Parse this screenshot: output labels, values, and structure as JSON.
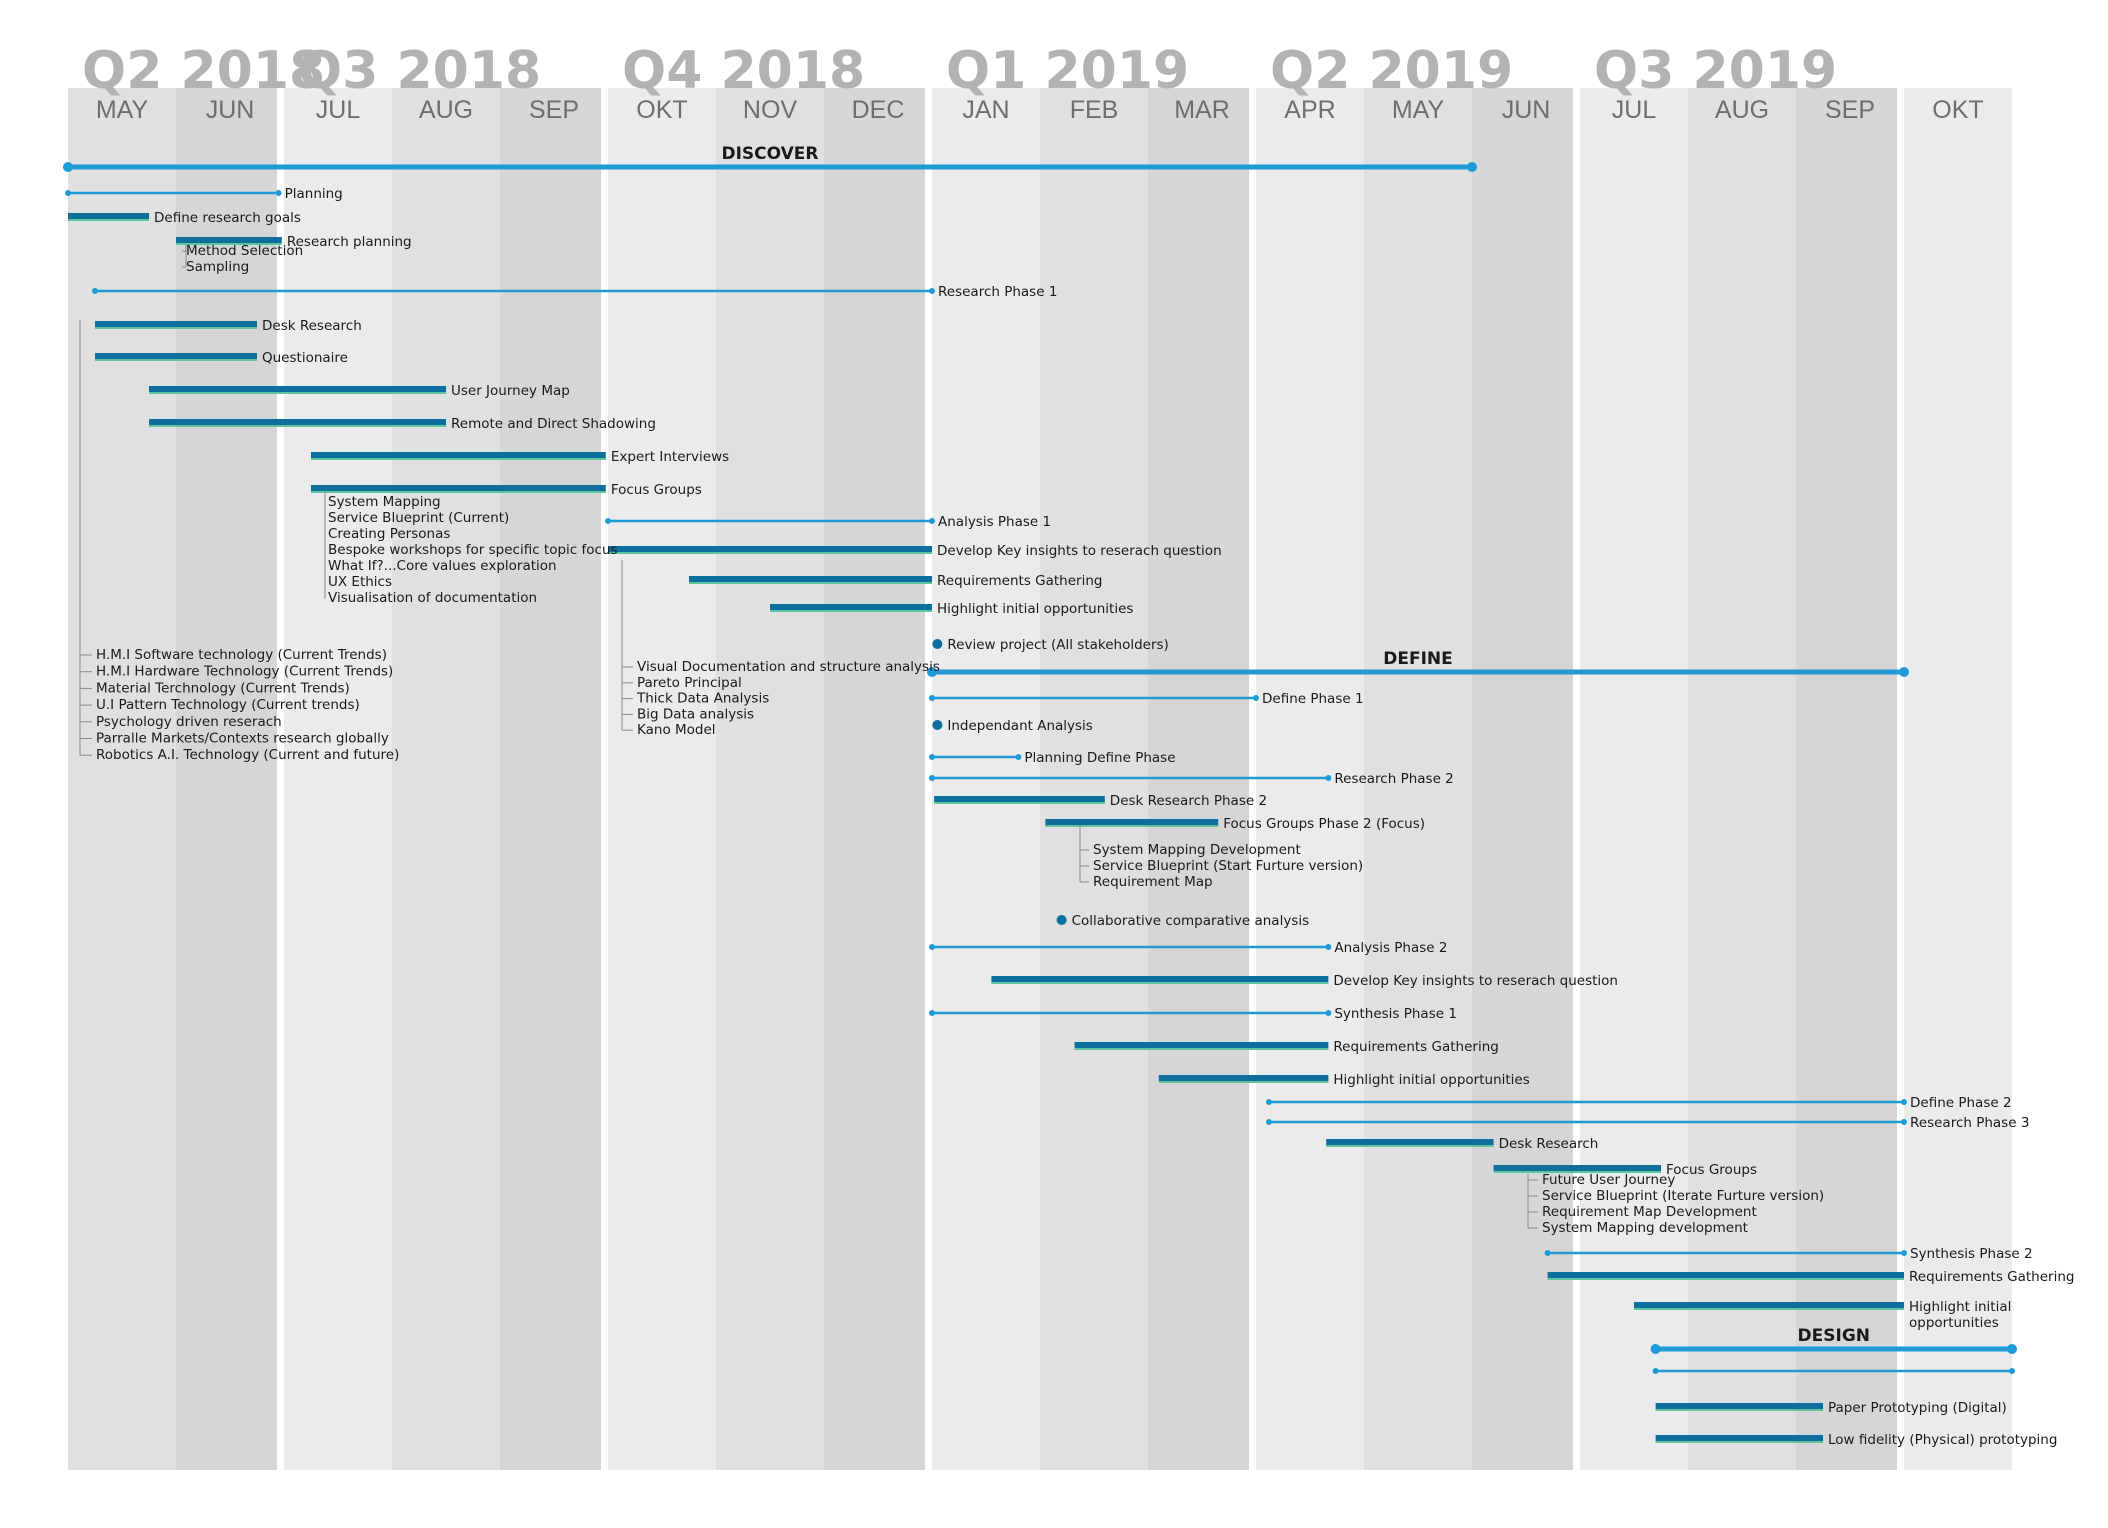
{
  "colors": {
    "band_light": "#ebebeb",
    "band_mid": "#e0e0e0",
    "band_dark": "#d6d6d6",
    "quarter_text": "#b3b3b3",
    "month_text": "#6e6e6e",
    "line_blue": "#1e9ad6",
    "bar_dark": "#0d6f9e",
    "bar_green": "#5ec49a",
    "text": "#1a1a1a",
    "tree_line": "#8a8a8a"
  },
  "quarters": [
    {
      "label": "Q2 2018",
      "start": 0,
      "end": 2
    },
    {
      "label": "Q3 2018",
      "start": 2,
      "end": 5
    },
    {
      "label": "Q4 2018",
      "start": 5,
      "end": 8
    },
    {
      "label": "Q1 2019",
      "start": 8,
      "end": 11
    },
    {
      "label": "Q2 2019",
      "start": 11,
      "end": 14
    },
    {
      "label": "Q3 2019",
      "start": 14,
      "end": 17
    }
  ],
  "months": [
    "MAY",
    "JUN",
    "JUL",
    "AUG",
    "SEP",
    "OKT",
    "NOV",
    "DEC",
    "JAN",
    "FEB",
    "MAR",
    "APR",
    "MAY",
    "JUN",
    "JUL",
    "AUG",
    "SEP",
    "OKT"
  ],
  "phases": [
    {
      "label": "DISCOVER",
      "start": 0,
      "end": 13.0
    },
    {
      "label": "DEFINE",
      "start": 8.0,
      "end": 17.0
    },
    {
      "label": "DESIGN",
      "start": 14.7,
      "end": 18.0
    }
  ],
  "tasks": [
    {
      "type": "line",
      "label": "Planning",
      "start": 0,
      "end": 1.95
    },
    {
      "type": "bar",
      "label": "Define research goals",
      "start": 0,
      "end": 0.75
    },
    {
      "type": "bar",
      "label": "Research planning",
      "start": 1.0,
      "end": 1.98
    },
    {
      "type": "line",
      "label": "Research Phase 1",
      "start": 0.25,
      "end": 8.0
    },
    {
      "type": "bar",
      "label": "Desk Research",
      "start": 0.25,
      "end": 1.75
    },
    {
      "type": "bar",
      "label": "Questionaire",
      "start": 0.25,
      "end": 1.75
    },
    {
      "type": "bar",
      "label": "User Journey Map",
      "start": 0.75,
      "end": 3.5
    },
    {
      "type": "bar",
      "label": "Remote and Direct Shadowing",
      "start": 0.75,
      "end": 3.5
    },
    {
      "type": "bar",
      "label": "Expert Interviews",
      "start": 2.25,
      "end": 4.98
    },
    {
      "type": "bar",
      "label": "Focus Groups",
      "start": 2.25,
      "end": 4.98
    },
    {
      "type": "line",
      "label": "Analysis Phase 1",
      "start": 5.0,
      "end": 8.0
    },
    {
      "type": "bar",
      "label": "Develop Key insights to reserach question",
      "start": 5.0,
      "end": 8.0
    },
    {
      "type": "bar",
      "label": "Requirements Gathering",
      "start": 5.75,
      "end": 8.0
    },
    {
      "type": "bar",
      "label": "Highlight initial opportunities",
      "start": 6.5,
      "end": 8.0
    },
    {
      "type": "dot",
      "label": "Review project (All stakeholders)",
      "start": 8.05
    },
    {
      "type": "line",
      "label": "Define Phase 1",
      "start": 8.0,
      "end": 11.0
    },
    {
      "type": "dot",
      "label": "Independant Analysis",
      "start": 8.05
    },
    {
      "type": "line",
      "label": "Planning Define Phase",
      "start": 8.0,
      "end": 8.8
    },
    {
      "type": "line",
      "label": "Research Phase 2",
      "start": 8.0,
      "end": 11.67
    },
    {
      "type": "bar",
      "label": "Desk Research Phase 2",
      "start": 8.02,
      "end": 9.6
    },
    {
      "type": "bar",
      "label": "Focus Groups Phase 2 (Focus)",
      "start": 9.05,
      "end": 10.65
    },
    {
      "type": "dot",
      "label": "Collaborative comparative analysis",
      "start": 9.2
    },
    {
      "type": "line",
      "label": "Analysis Phase 2",
      "start": 8.0,
      "end": 11.67
    },
    {
      "type": "bar",
      "label": "Develop Key insights to reserach question",
      "start": 8.55,
      "end": 11.67
    },
    {
      "type": "line",
      "label": "Synthesis Phase 1",
      "start": 8.0,
      "end": 11.67
    },
    {
      "type": "bar",
      "label": "Requirements Gathering",
      "start": 9.32,
      "end": 11.67
    },
    {
      "type": "bar",
      "label": "Highlight initial opportunities",
      "start": 10.1,
      "end": 11.67
    },
    {
      "type": "line",
      "label": "Define Phase   2",
      "start": 11.12,
      "end": 17.0
    },
    {
      "type": "line",
      "label": "Research Phase 3",
      "start": 11.12,
      "end": 17.0
    },
    {
      "type": "bar",
      "label": "Desk Research",
      "start": 11.65,
      "end": 13.2
    },
    {
      "type": "bar",
      "label": "Focus Groups",
      "start": 13.2,
      "end": 14.75
    },
    {
      "type": "line",
      "label": "Synthesis Phase 2",
      "start": 13.7,
      "end": 17.0
    },
    {
      "type": "bar",
      "label": "Requirements Gathering",
      "start": 13.7,
      "end": 17.0
    },
    {
      "type": "bar",
      "label": "Highlight initial",
      "label2": "opportunities",
      "start": 14.5,
      "end": 17.0
    },
    {
      "type": "line",
      "label": "",
      "start": 14.7,
      "end": 18.0
    },
    {
      "type": "bar",
      "label": "Paper Prototyping (Digital)",
      "start": 14.7,
      "end": 16.25
    },
    {
      "type": "bar",
      "label": "Low fidelity (Physical) prototyping",
      "start": 14.7,
      "end": 16.25
    }
  ],
  "groups": [
    {
      "items": [
        "Method Selection",
        "Sampling"
      ]
    },
    {
      "items": [
        "System Mapping",
        "Service Blueprint (Current)",
        "Creating Personas",
        "Bespoke workshops for specific topic focus",
        "What If?...Core values exploration",
        "UX Ethics",
        "Visualisation of documentation"
      ]
    },
    {
      "items": [
        "H.M.I Software technology (Current Trends)",
        "H.M.I Hardware Technology (Current Trends)",
        "Material Terchnology (Current Trends)",
        "U.I Pattern Technology (Current trends)",
        "Psychology driven reserach",
        "Parralle Markets/Contexts research globally",
        "Robotics A.I. Technology (Current and future)"
      ]
    },
    {
      "items": [
        "Visual Documentation and structure analysis",
        "Pareto Principal",
        "Thick Data Analysis",
        "Big Data analysis",
        "Kano Model"
      ]
    },
    {
      "items": [
        "System Mapping Development",
        "Service Blueprint (Start Furture version)",
        "Requirement Map"
      ]
    },
    {
      "items": [
        "Future User Journey",
        "Service Blueprint (Iterate Furture version)",
        "Requirement Map Development",
        "System Mapping development"
      ]
    }
  ]
}
